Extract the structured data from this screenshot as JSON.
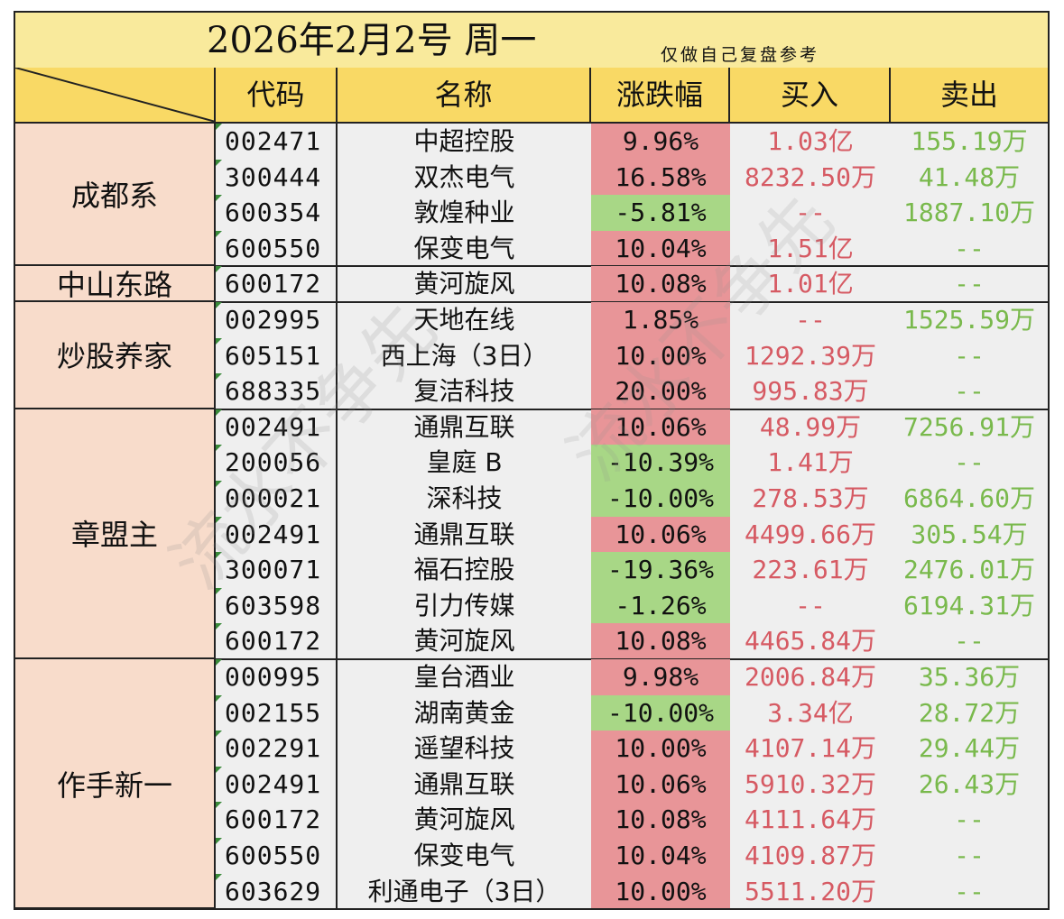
{
  "title": {
    "main": "2026年2月2号  周一",
    "note": "仅做自己复盘参考"
  },
  "columns": [
    "代码",
    "名称",
    "涨跌幅",
    "买入",
    "卖出"
  ],
  "watermark": "流水不争先",
  "colors": {
    "up": "#e89598",
    "down": "#a8d786",
    "buy_text": "#d65a63",
    "sell_text": "#79b94c",
    "header": "#f9d965",
    "title": "#f9ea9c",
    "group": "#f8dccb"
  },
  "groups": [
    {
      "name": "成都系",
      "rows": [
        {
          "code": "002471",
          "name": "中超控股",
          "change": "9.96%",
          "dir": "up",
          "buy": "1.03亿",
          "sell": "155.19万"
        },
        {
          "code": "300444",
          "name": "双杰电气",
          "change": "16.58%",
          "dir": "up",
          "buy": "8232.50万",
          "sell": "41.48万"
        },
        {
          "code": "600354",
          "name": "敦煌种业",
          "change": "-5.81%",
          "dir": "down",
          "buy": "--",
          "sell": "1887.10万"
        },
        {
          "code": "600550",
          "name": "保变电气",
          "change": "10.04%",
          "dir": "up",
          "buy": "1.51亿",
          "sell": "--"
        }
      ]
    },
    {
      "name": "中山东路",
      "rows": [
        {
          "code": "600172",
          "name": "黄河旋风",
          "change": "10.08%",
          "dir": "up",
          "buy": "1.01亿",
          "sell": "--"
        }
      ]
    },
    {
      "name": "炒股养家",
      "rows": [
        {
          "code": "002995",
          "name": "天地在线",
          "change": "1.85%",
          "dir": "up",
          "buy": "--",
          "sell": "1525.59万"
        },
        {
          "code": "605151",
          "name": "西上海（3日）",
          "change": "10.00%",
          "dir": "up",
          "buy": "1292.39万",
          "sell": "--"
        },
        {
          "code": "688335",
          "name": "复洁科技",
          "change": "20.00%",
          "dir": "up",
          "buy": "995.83万",
          "sell": "--"
        }
      ]
    },
    {
      "name": "章盟主",
      "rows": [
        {
          "code": "002491",
          "name": "通鼎互联",
          "change": "10.06%",
          "dir": "up",
          "buy": "48.99万",
          "sell": "7256.91万"
        },
        {
          "code": "200056",
          "name": "皇庭 B",
          "change": "-10.39%",
          "dir": "down",
          "buy": "1.41万",
          "sell": "--"
        },
        {
          "code": "000021",
          "name": "深科技",
          "change": "-10.00%",
          "dir": "down",
          "buy": "278.53万",
          "sell": "6864.60万"
        },
        {
          "code": "002491",
          "name": "通鼎互联",
          "change": "10.06%",
          "dir": "up",
          "buy": "4499.66万",
          "sell": "305.54万"
        },
        {
          "code": "300071",
          "name": "福石控股",
          "change": "-19.36%",
          "dir": "down",
          "buy": "223.61万",
          "sell": "2476.01万"
        },
        {
          "code": "603598",
          "name": "引力传媒",
          "change": "-1.26%",
          "dir": "down",
          "buy": "--",
          "sell": "6194.31万"
        },
        {
          "code": "600172",
          "name": "黄河旋风",
          "change": "10.08%",
          "dir": "up",
          "buy": "4465.84万",
          "sell": "--"
        }
      ]
    },
    {
      "name": "作手新一",
      "rows": [
        {
          "code": "000995",
          "name": "皇台酒业",
          "change": "9.98%",
          "dir": "up",
          "buy": "2006.84万",
          "sell": "35.36万"
        },
        {
          "code": "002155",
          "name": "湖南黄金",
          "change": "-10.00%",
          "dir": "down",
          "buy": "3.34亿",
          "sell": "28.72万"
        },
        {
          "code": "002291",
          "name": "遥望科技",
          "change": "10.00%",
          "dir": "up",
          "buy": "4107.14万",
          "sell": "29.44万"
        },
        {
          "code": "002491",
          "name": "通鼎互联",
          "change": "10.06%",
          "dir": "up",
          "buy": "5910.32万",
          "sell": "26.43万"
        },
        {
          "code": "600172",
          "name": "黄河旋风",
          "change": "10.08%",
          "dir": "up",
          "buy": "4111.64万",
          "sell": "--"
        },
        {
          "code": "600550",
          "name": "保变电气",
          "change": "10.04%",
          "dir": "up",
          "buy": "4109.87万",
          "sell": "--"
        },
        {
          "code": "603629",
          "name": "利通电子（3日）",
          "change": "10.00%",
          "dir": "up",
          "buy": "5511.20万",
          "sell": "--"
        }
      ]
    }
  ]
}
